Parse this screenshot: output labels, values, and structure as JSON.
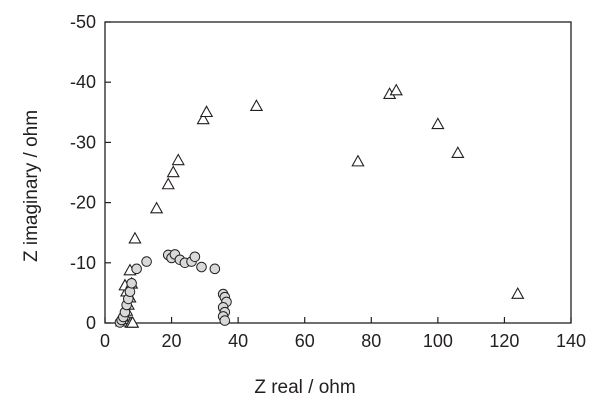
{
  "chart_data": {
    "type": "scatter",
    "title": "",
    "xlabel": "Z real / ohm",
    "ylabel": "Z imaginary / ohm",
    "xlim": [
      0,
      140
    ],
    "ylim": [
      0,
      -50
    ],
    "y_axis_inverted": true,
    "x_ticks": [
      "0",
      "20",
      "40",
      "60",
      "80",
      "100",
      "120",
      "140"
    ],
    "y_ticks": [
      "0",
      "-10",
      "-20",
      "-30",
      "-40",
      "-50"
    ],
    "grid": false,
    "legend": "none",
    "series": [
      {
        "marker": "triangle",
        "color": "#ffffff",
        "edge_color": "#231f20",
        "points": [
          {
            "x": 5.0,
            "y": -0.2
          },
          {
            "x": 5.5,
            "y": -0.6
          },
          {
            "x": 6.0,
            "y": -1.2
          },
          {
            "x": 6.5,
            "y": -2.0
          },
          {
            "x": 7.0,
            "y": -3.0
          },
          {
            "x": 7.5,
            "y": -4.2
          },
          {
            "x": 6.5,
            "y": -5.2
          },
          {
            "x": 6.0,
            "y": -6.2
          },
          {
            "x": 8.0,
            "y": -6.5
          },
          {
            "x": 7.5,
            "y": -8.7
          },
          {
            "x": 7.8,
            "y": 0.0
          },
          {
            "x": 8.3,
            "y": 0.0
          },
          {
            "x": 9.0,
            "y": -14.0
          },
          {
            "x": 15.5,
            "y": -19.0
          },
          {
            "x": 19.0,
            "y": -23.0
          },
          {
            "x": 20.5,
            "y": -25.0
          },
          {
            "x": 22.0,
            "y": -27.0
          },
          {
            "x": 29.5,
            "y": -33.8
          },
          {
            "x": 30.5,
            "y": -35.0
          },
          {
            "x": 45.5,
            "y": -36.0
          },
          {
            "x": 76.0,
            "y": -26.8
          },
          {
            "x": 85.5,
            "y": -38.0
          },
          {
            "x": 87.5,
            "y": -38.6
          },
          {
            "x": 100.0,
            "y": -33.0
          },
          {
            "x": 106.0,
            "y": -28.2
          },
          {
            "x": 124.0,
            "y": -4.8
          }
        ]
      },
      {
        "marker": "circle",
        "color": "#d9d9d9",
        "edge_color": "#231f20",
        "points": [
          {
            "x": 4.5,
            "y": -0.1
          },
          {
            "x": 5.0,
            "y": -0.5
          },
          {
            "x": 5.5,
            "y": -1.0
          },
          {
            "x": 6.0,
            "y": -1.8
          },
          {
            "x": 6.5,
            "y": -3.0
          },
          {
            "x": 7.0,
            "y": -4.0
          },
          {
            "x": 7.5,
            "y": -5.2
          },
          {
            "x": 8.0,
            "y": -6.6
          },
          {
            "x": 9.5,
            "y": -9.0
          },
          {
            "x": 12.5,
            "y": -10.2
          },
          {
            "x": 19.0,
            "y": -11.3
          },
          {
            "x": 20.0,
            "y": -10.8
          },
          {
            "x": 21.0,
            "y": -11.4
          },
          {
            "x": 22.5,
            "y": -10.5
          },
          {
            "x": 24.0,
            "y": -10.0
          },
          {
            "x": 26.0,
            "y": -10.2
          },
          {
            "x": 27.0,
            "y": -11.0
          },
          {
            "x": 29.0,
            "y": -9.3
          },
          {
            "x": 33.0,
            "y": -9.0
          },
          {
            "x": 35.5,
            "y": -4.8
          },
          {
            "x": 36.0,
            "y": -4.3
          },
          {
            "x": 36.5,
            "y": -3.5
          },
          {
            "x": 35.5,
            "y": -2.6
          },
          {
            "x": 36.0,
            "y": -1.8
          },
          {
            "x": 35.5,
            "y": -1.1
          },
          {
            "x": 36.0,
            "y": -0.4
          }
        ]
      }
    ]
  }
}
